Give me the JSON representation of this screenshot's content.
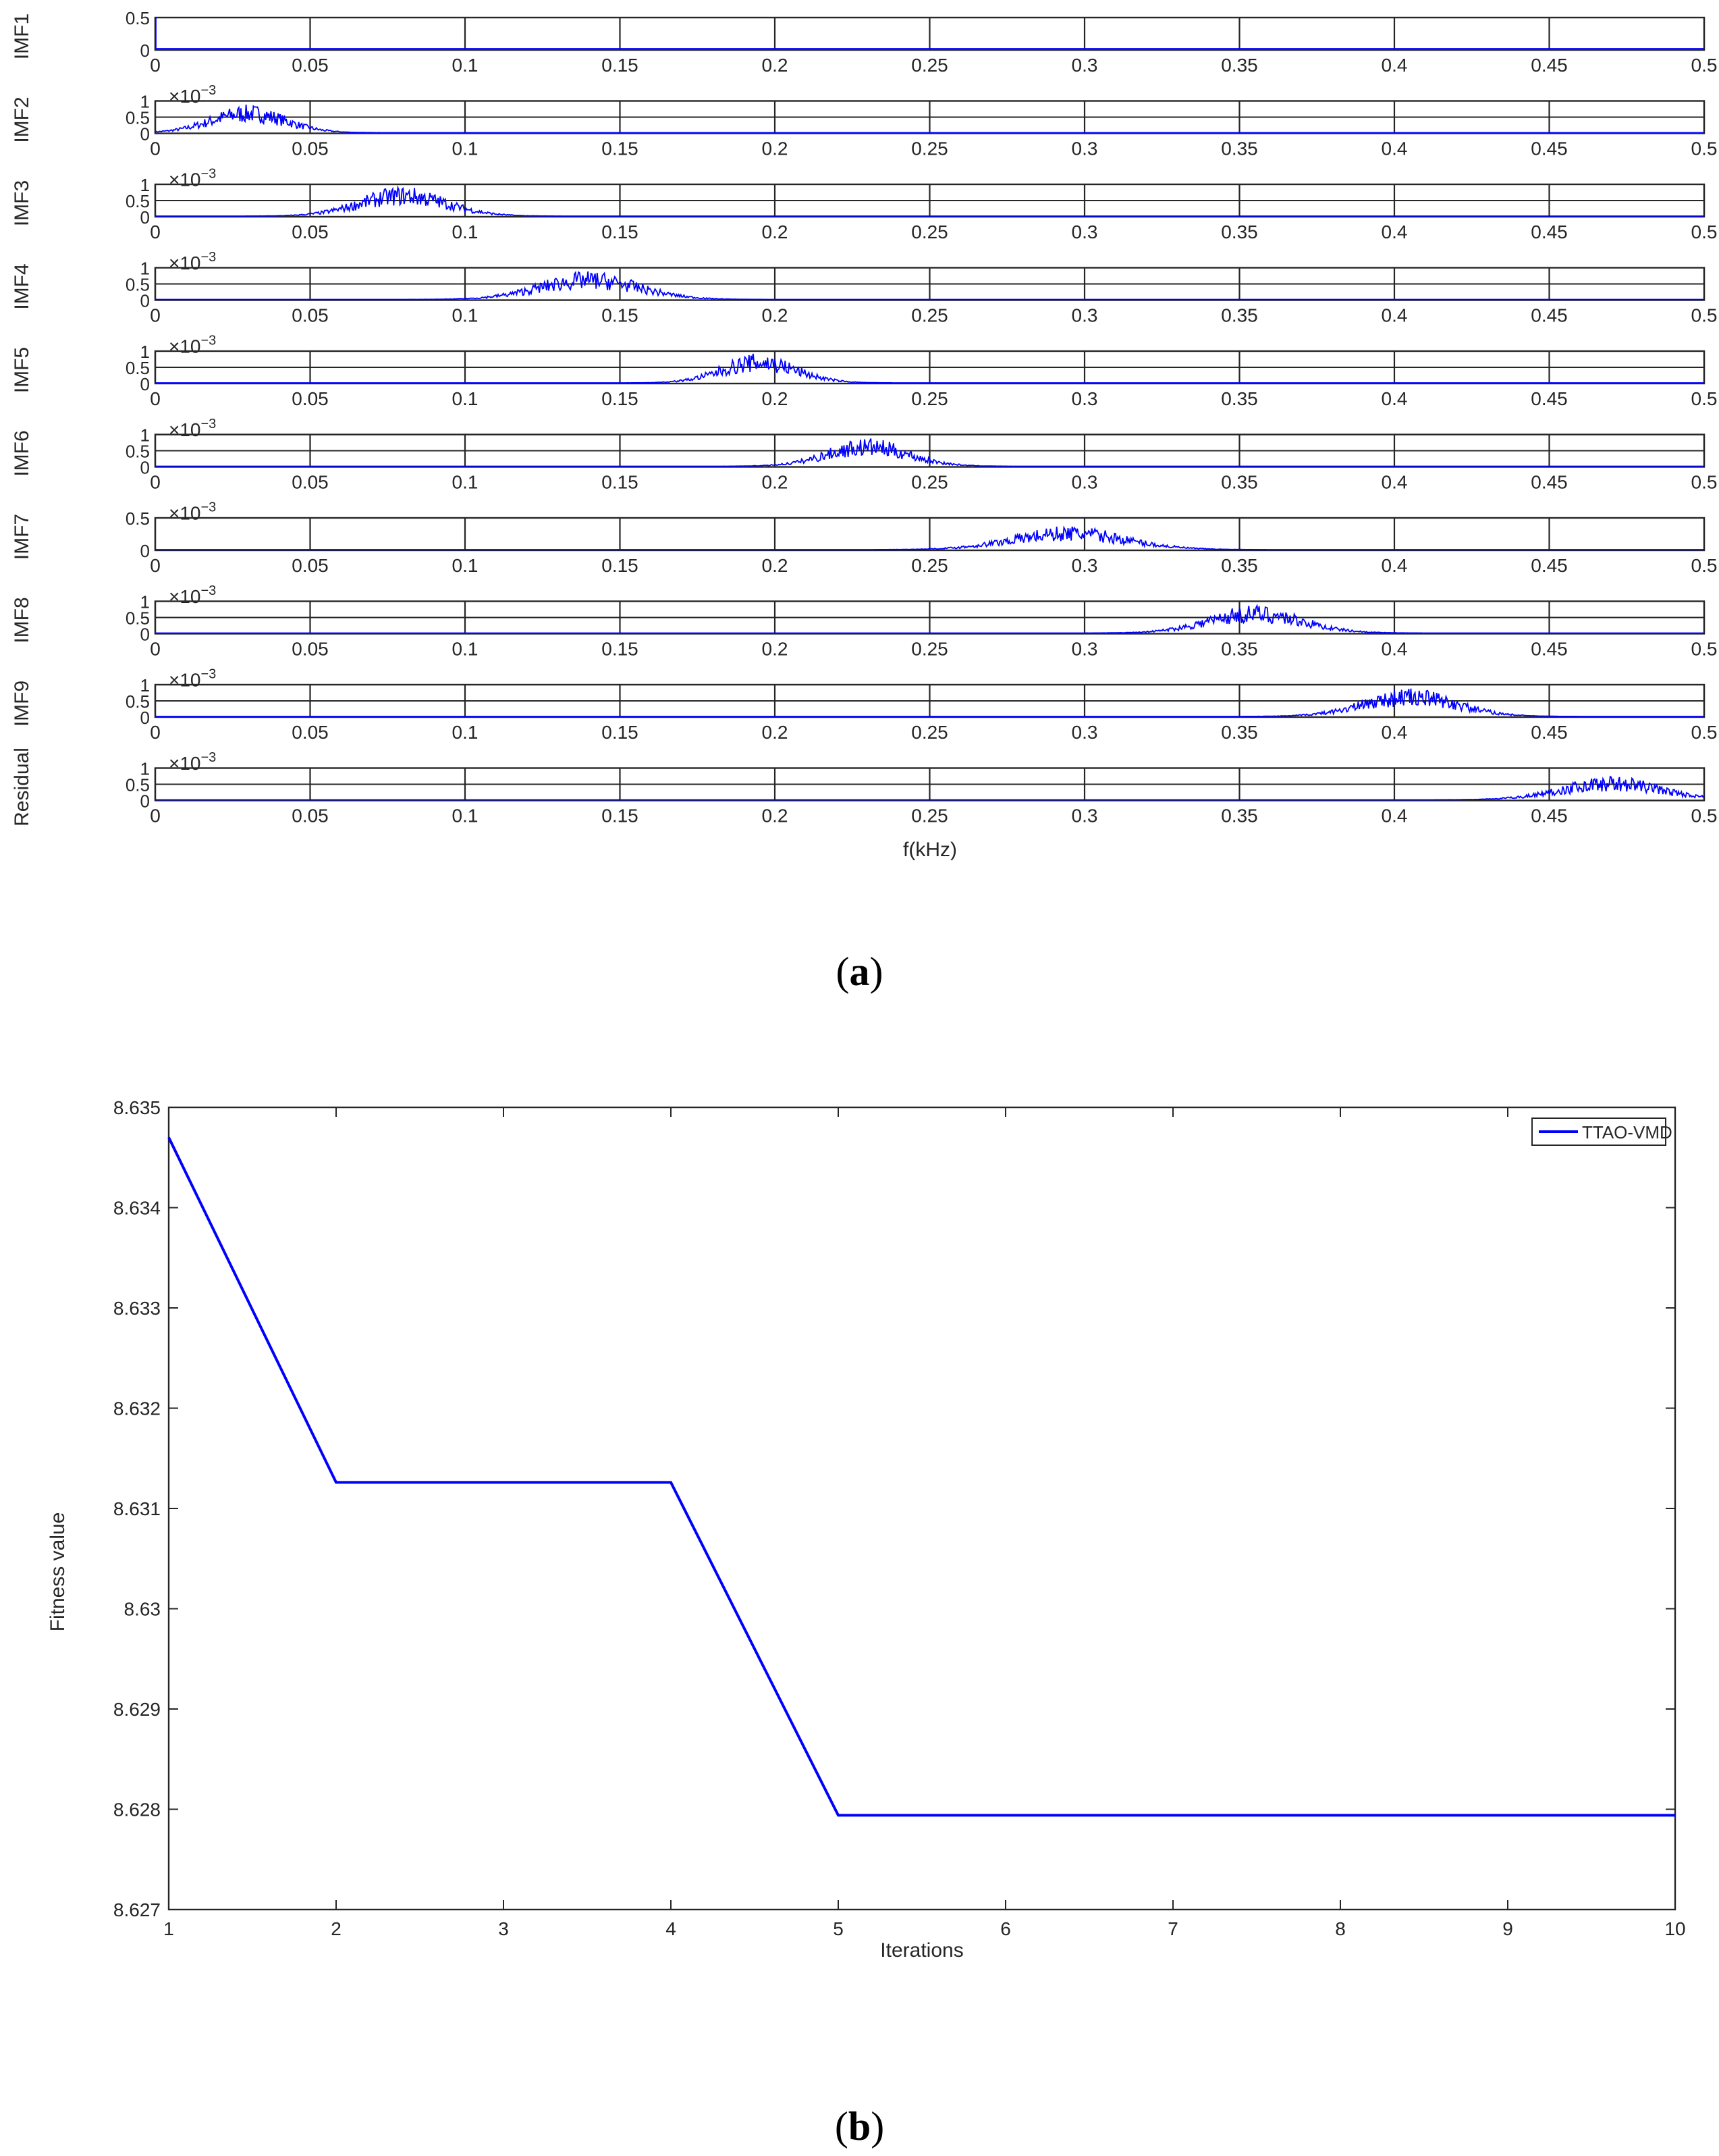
{
  "panel_a": {
    "caption_label": "a",
    "xlabel": "f(kHz)",
    "xtick_labels": [
      "0",
      "0.05",
      "0.1",
      "0.15",
      "0.2",
      "0.25",
      "0.3",
      "0.35",
      "0.4",
      "0.45",
      "0.5"
    ],
    "exponent_label": "×10",
    "exponent_power": "−3",
    "subplots": [
      {
        "label": "IMF1",
        "ytick_labels": [
          "0.5",
          "0"
        ],
        "center": 0.0,
        "width": 0.0,
        "peak": 0.5
      },
      {
        "label": "IMF2",
        "ytick_labels": [
          "1",
          "0.5",
          "0"
        ],
        "center": 0.03,
        "width": 0.012,
        "peak": 0.95
      },
      {
        "label": "IMF3",
        "ytick_labels": [
          "1",
          "0.5",
          "0"
        ],
        "center": 0.08,
        "width": 0.014,
        "peak": 1.0
      },
      {
        "label": "IMF4",
        "ytick_labels": [
          "1",
          "0.5",
          "0"
        ],
        "center": 0.14,
        "width": 0.016,
        "peak": 0.95
      },
      {
        "label": "IMF5",
        "ytick_labels": [
          "1",
          "0.5",
          "0"
        ],
        "center": 0.195,
        "width": 0.012,
        "peak": 1.0
      },
      {
        "label": "IMF6",
        "ytick_labels": [
          "1",
          "0.5",
          "0"
        ],
        "center": 0.23,
        "width": 0.013,
        "peak": 0.95
      },
      {
        "label": "IMF7",
        "ytick_labels": [
          "0.5",
          "0"
        ],
        "center": 0.295,
        "width": 0.018,
        "peak": 0.8
      },
      {
        "label": "IMF8",
        "ytick_labels": [
          "1",
          "0.5",
          "0"
        ],
        "center": 0.355,
        "width": 0.015,
        "peak": 0.95
      },
      {
        "label": "IMF9",
        "ytick_labels": [
          "1",
          "0.5",
          "0"
        ],
        "center": 0.405,
        "width": 0.015,
        "peak": 0.95
      },
      {
        "label": "Residual",
        "ytick_labels": [
          "1",
          "0.5",
          "0"
        ],
        "center": 0.47,
        "width": 0.016,
        "peak": 0.8
      }
    ]
  },
  "panel_b": {
    "caption_label": "b",
    "xlabel": "Iterations",
    "ylabel": "Fitness value",
    "legend": "TTAO-VMD",
    "xtick_labels": [
      "1",
      "2",
      "3",
      "4",
      "5",
      "6",
      "7",
      "8",
      "9",
      "10"
    ],
    "ytick_labels": [
      "8.627",
      "8.628",
      "8.629",
      "8.63",
      "8.631",
      "8.632",
      "8.633",
      "8.634",
      "8.635"
    ]
  },
  "chart_data": [
    {
      "type": "line",
      "title": "",
      "xlabel": "f(kHz)",
      "xlim": [
        0,
        0.5
      ],
      "series": [
        {
          "name": "IMF1",
          "peak_frequency": 0.0,
          "peak_amplitude": 0.5,
          "ylim": [
            0,
            0.5
          ]
        },
        {
          "name": "IMF2",
          "peak_frequency": 0.03,
          "peak_amplitude_e3": 0.95,
          "ylim": [
            0,
            1
          ]
        },
        {
          "name": "IMF3",
          "peak_frequency": 0.08,
          "peak_amplitude_e3": 1.0,
          "ylim": [
            0,
            1
          ]
        },
        {
          "name": "IMF4",
          "peak_frequency": 0.14,
          "peak_amplitude_e3": 0.95,
          "ylim": [
            0,
            1
          ]
        },
        {
          "name": "IMF5",
          "peak_frequency": 0.195,
          "peak_amplitude_e3": 1.0,
          "ylim": [
            0,
            1
          ]
        },
        {
          "name": "IMF6",
          "peak_frequency": 0.23,
          "peak_amplitude_e3": 0.95,
          "ylim": [
            0,
            1
          ]
        },
        {
          "name": "IMF7",
          "peak_frequency": 0.295,
          "peak_amplitude_e3": 0.8,
          "ylim": [
            0,
            1
          ]
        },
        {
          "name": "IMF8",
          "peak_frequency": 0.355,
          "peak_amplitude_e3": 0.95,
          "ylim": [
            0,
            1
          ]
        },
        {
          "name": "IMF9",
          "peak_frequency": 0.405,
          "peak_amplitude_e3": 0.95,
          "ylim": [
            0,
            1
          ]
        },
        {
          "name": "Residual",
          "peak_frequency": 0.47,
          "peak_amplitude_e3": 0.8,
          "ylim": [
            0,
            1
          ]
        }
      ],
      "grid": true
    },
    {
      "type": "line",
      "title": "",
      "xlabel": "Iterations",
      "ylabel": "Fitness value",
      "x": [
        1,
        2,
        3,
        4,
        5,
        6,
        7,
        8,
        9,
        10
      ],
      "series": [
        {
          "name": "TTAO-VMD",
          "color": "#0000ff",
          "values": [
            8.6347,
            8.63126,
            8.63126,
            8.63126,
            8.62794,
            8.62794,
            8.62794,
            8.62794,
            8.62794,
            8.62794
          ]
        }
      ],
      "xlim": [
        1,
        10
      ],
      "ylim": [
        8.627,
        8.635
      ],
      "legend": "top-right",
      "grid": false
    }
  ],
  "colors": {
    "line": "#0000ff",
    "axis": "#262626",
    "grid": "#262626"
  }
}
